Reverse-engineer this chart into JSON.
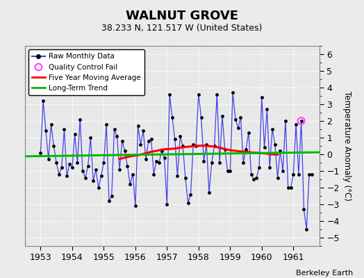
{
  "title": "WALNUT GROVE",
  "subtitle": "38.233 N, 121.517 W (United States)",
  "ylabel": "Temperature Anomaly (°C)",
  "attribution": "Berkeley Earth",
  "ylim": [
    -5.5,
    6.5
  ],
  "yticks": [
    -5,
    -4,
    -3,
    -2,
    -1,
    0,
    1,
    2,
    3,
    4,
    5,
    6
  ],
  "xlim": [
    1952.5,
    1961.83
  ],
  "xtick_years": [
    1953,
    1954,
    1955,
    1956,
    1957,
    1958,
    1959,
    1960,
    1961
  ],
  "fig_bg_color": "#ebebeb",
  "plot_bg_color": "#e8e8e8",
  "raw_data": {
    "times": [
      1953.0,
      1953.083,
      1953.167,
      1953.25,
      1953.333,
      1953.417,
      1953.5,
      1953.583,
      1953.667,
      1953.75,
      1953.833,
      1953.917,
      1954.0,
      1954.083,
      1954.167,
      1954.25,
      1954.333,
      1954.417,
      1954.5,
      1954.583,
      1954.667,
      1954.75,
      1954.833,
      1954.917,
      1955.0,
      1955.083,
      1955.167,
      1955.25,
      1955.333,
      1955.417,
      1955.5,
      1955.583,
      1955.667,
      1955.75,
      1955.833,
      1955.917,
      1956.0,
      1956.083,
      1956.167,
      1956.25,
      1956.333,
      1956.417,
      1956.5,
      1956.583,
      1956.667,
      1956.75,
      1956.833,
      1956.917,
      1957.0,
      1957.083,
      1957.167,
      1957.25,
      1957.333,
      1957.417,
      1957.5,
      1957.583,
      1957.667,
      1957.75,
      1957.833,
      1957.917,
      1958.0,
      1958.083,
      1958.167,
      1958.25,
      1958.333,
      1958.417,
      1958.5,
      1958.583,
      1958.667,
      1958.75,
      1958.833,
      1958.917,
      1959.0,
      1959.083,
      1959.167,
      1959.25,
      1959.333,
      1959.417,
      1959.5,
      1959.583,
      1959.667,
      1959.75,
      1959.833,
      1959.917,
      1960.0,
      1960.083,
      1960.167,
      1960.25,
      1960.333,
      1960.417,
      1960.5,
      1960.583,
      1960.667,
      1960.75,
      1960.833,
      1960.917,
      1961.0,
      1961.083,
      1961.167,
      1961.25,
      1961.333,
      1961.417,
      1961.5,
      1961.583
    ],
    "values": [
      0.1,
      3.2,
      1.4,
      -0.3,
      1.8,
      0.5,
      -0.5,
      -1.2,
      -0.8,
      1.5,
      -1.3,
      -0.6,
      -0.8,
      1.2,
      -0.5,
      2.1,
      -1.0,
      -1.4,
      -0.7,
      1.0,
      -1.6,
      -0.9,
      -2.0,
      -1.3,
      -0.5,
      1.8,
      -2.8,
      -2.5,
      1.5,
      1.1,
      -0.9,
      0.8,
      0.2,
      -0.7,
      -1.8,
      -1.2,
      -3.1,
      1.7,
      0.6,
      1.4,
      -0.3,
      0.8,
      0.9,
      -1.2,
      -0.4,
      -0.5,
      0.2,
      -0.2,
      -3.0,
      3.6,
      2.2,
      0.9,
      -1.3,
      1.1,
      0.5,
      -1.4,
      -2.9,
      -2.4,
      0.6,
      0.5,
      3.6,
      2.2,
      -0.4,
      0.6,
      -2.3,
      -0.5,
      0.5,
      3.6,
      -0.5,
      2.3,
      0.3,
      -1.0,
      -1.0,
      3.7,
      2.1,
      1.6,
      2.2,
      -0.5,
      0.3,
      1.3,
      -1.2,
      -1.5,
      -1.4,
      -0.8,
      3.4,
      0.4,
      2.7,
      -0.8,
      1.5,
      0.6,
      -1.4,
      0.2,
      -1.0,
      2.0,
      -2.0,
      -2.0,
      -1.2,
      1.8,
      -1.2,
      2.0,
      -3.3,
      -4.5,
      -1.2,
      -1.2
    ]
  },
  "qc_fail": {
    "times": [
      1961.25
    ],
    "values": [
      2.0
    ]
  },
  "moving_avg": {
    "times": [
      1955.5,
      1955.7,
      1955.9,
      1956.1,
      1956.3,
      1956.5,
      1956.7,
      1956.9,
      1957.1,
      1957.3,
      1957.5,
      1957.7,
      1957.9,
      1958.1,
      1958.3,
      1958.5,
      1958.7,
      1958.9,
      1959.1,
      1959.3,
      1959.5,
      1959.7,
      1959.9,
      1960.1,
      1960.3,
      1960.5
    ],
    "values": [
      -0.28,
      -0.18,
      -0.1,
      -0.05,
      0.05,
      0.15,
      0.22,
      0.3,
      0.32,
      0.36,
      0.42,
      0.46,
      0.5,
      0.52,
      0.5,
      0.46,
      0.38,
      0.28,
      0.22,
      0.18,
      0.15,
      0.1,
      0.08,
      0.05,
      0.0,
      -0.02
    ]
  },
  "trend": {
    "times": [
      1952.5,
      1961.83
    ],
    "values": [
      -0.12,
      0.12
    ]
  },
  "line_color": "#4040ee",
  "marker_color": "#000000",
  "moving_avg_color": "#ff0000",
  "trend_color": "#00bb00",
  "qc_color": "#ff44ff",
  "grid_color": "#ffffff",
  "spine_color": "#808080"
}
